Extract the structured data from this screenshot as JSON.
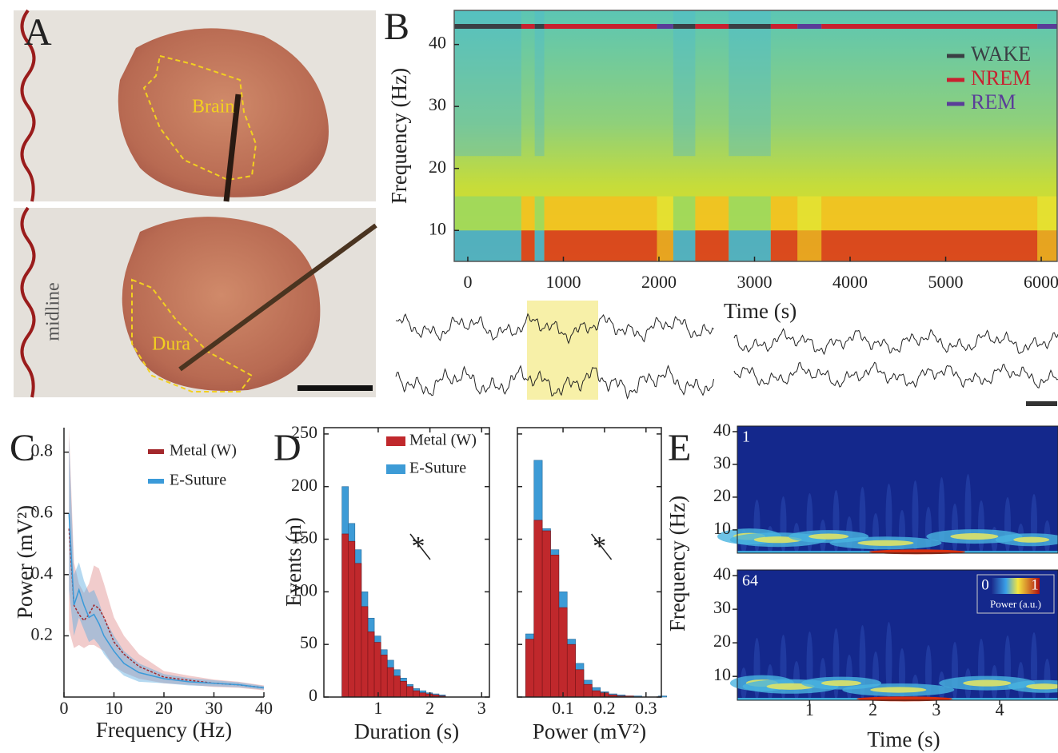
{
  "panel_labels": [
    "A",
    "B",
    "C",
    "D",
    "E"
  ],
  "photo": {
    "top_label": "Brain",
    "bottom_label": "Dura",
    "side_label": "midline"
  },
  "chart_data": [
    {
      "type": "spectrogram",
      "ylabel": "Frequency (Hz)",
      "xlabel": "Time (s)",
      "xlim": [
        -142,
        6167
      ],
      "ylim": [
        5,
        45.5
      ],
      "xticks": [
        0,
        1000,
        2000,
        3000,
        4000,
        5000,
        6000
      ],
      "yticks": [
        10,
        20,
        30,
        40
      ],
      "legend": "upper right",
      "series": [
        {
          "name": "WAKE",
          "color": "#3a3f44"
        },
        {
          "name": "NREM",
          "color": "#c8202f"
        },
        {
          "name": "REM",
          "color": "#5a3d98"
        }
      ],
      "hypnogram": {
        "stage": [
          0,
          1,
          0,
          1,
          2,
          0,
          1,
          0,
          1,
          2,
          1,
          2
        ],
        "start": [
          -142,
          560,
          700,
          800,
          1980,
          2150,
          2380,
          2730,
          3170,
          3450,
          3700,
          5960
        ],
        "end": [
          560,
          700,
          800,
          1980,
          2150,
          2380,
          2730,
          3170,
          3450,
          3700,
          5960,
          6167
        ]
      }
    },
    {
      "type": "line",
      "xlabel": "Frequency (Hz)",
      "ylabel": "Power (mV²)",
      "xlim": [
        0,
        40
      ],
      "ylim": [
        0,
        0.88
      ],
      "xticks": [
        0,
        10,
        20,
        30,
        40
      ],
      "yticks": [
        0.2,
        0.4,
        0.6,
        0.8
      ],
      "legend": "upper right",
      "x": [
        1,
        2,
        3,
        4,
        5,
        6,
        7,
        8,
        10,
        12,
        15,
        20,
        25,
        30,
        35,
        40
      ],
      "series": [
        {
          "name": "Metal (W)",
          "color": "#a3282c",
          "values": [
            0.55,
            0.3,
            0.27,
            0.25,
            0.27,
            0.3,
            0.29,
            0.26,
            0.18,
            0.14,
            0.1,
            0.065,
            0.055,
            0.045,
            0.04,
            0.03
          ],
          "errors": [
            0.33,
            0.14,
            0.1,
            0.09,
            0.1,
            0.13,
            0.13,
            0.11,
            0.08,
            0.06,
            0.04,
            0.02,
            0.015,
            0.012,
            0.01,
            0.008
          ]
        },
        {
          "name": "E-Suture",
          "color": "#3a9ad9",
          "values": [
            0.6,
            0.3,
            0.35,
            0.3,
            0.26,
            0.27,
            0.24,
            0.2,
            0.15,
            0.11,
            0.08,
            0.06,
            0.05,
            0.045,
            0.04,
            0.03
          ],
          "errors": [
            0.25,
            0.1,
            0.09,
            0.08,
            0.08,
            0.08,
            0.07,
            0.06,
            0.05,
            0.04,
            0.03,
            0.015,
            0.012,
            0.01,
            0.008,
            0.006
          ]
        }
      ]
    },
    {
      "type": "histogram",
      "xlabel": "Duration (s)",
      "ylabel": "Events (n)",
      "xlim": [
        -0.05,
        3.15
      ],
      "ylim": [
        0,
        256
      ],
      "xticks": [
        1,
        2,
        3
      ],
      "yticks": [
        0,
        50,
        100,
        150,
        200,
        250
      ],
      "annotation": "*",
      "legend": "upper right",
      "bins": [
        0.3,
        0.425,
        0.55,
        0.675,
        0.8,
        0.925,
        1.05,
        1.175,
        1.3,
        1.425,
        1.55,
        1.675,
        1.8,
        1.925,
        2.05,
        2.175,
        2.3
      ],
      "series": [
        {
          "name": "Metal (W)",
          "color": "#c0282c",
          "values": [
            155,
            148,
            127,
            86,
            62,
            52,
            40,
            28,
            20,
            15,
            10,
            6,
            4,
            3,
            2,
            1
          ]
        },
        {
          "name": "E-Suture",
          "color": "#3d9bd6",
          "values": [
            200,
            165,
            140,
            100,
            75,
            58,
            45,
            35,
            26,
            18,
            12,
            8,
            6,
            4,
            3,
            2
          ]
        }
      ]
    },
    {
      "type": "histogram",
      "xlabel": "Power (mV²)",
      "xlim": [
        -0.01,
        0.337
      ],
      "ylim": [
        0,
        256
      ],
      "xticks": [
        0.1,
        0.2,
        0.3
      ],
      "yticks": [
        0,
        50,
        100,
        150,
        200,
        250
      ],
      "annotation": "*",
      "bins": [
        0.01,
        0.03,
        0.05,
        0.07,
        0.09,
        0.11,
        0.13,
        0.15,
        0.17,
        0.19,
        0.21,
        0.23,
        0.25,
        0.27,
        0.29,
        0.31,
        0.33,
        0.35
      ],
      "series": [
        {
          "color": "#c0282c",
          "values": [
            55,
            168,
            158,
            135,
            85,
            50,
            26,
            12,
            6,
            4,
            2,
            1,
            1,
            0,
            0,
            0,
            0
          ]
        },
        {
          "color": "#3d9bd6",
          "values": [
            60,
            225,
            160,
            140,
            100,
            55,
            32,
            16,
            9,
            5,
            3,
            2,
            1,
            1,
            0,
            0,
            1
          ]
        }
      ]
    },
    {
      "type": "heatmap",
      "xlabel": "Time (s)",
      "ylabel": "Frequency (Hz)",
      "xlim": [
        -0.14,
        4.92
      ],
      "ylim": [
        2.9,
        41.7
      ],
      "xticks": [
        1,
        2,
        3,
        4
      ],
      "yticks": [
        10,
        20,
        30,
        40
      ],
      "panels": [
        "1",
        "64"
      ],
      "colorbar": {
        "lim": [
          0,
          1
        ],
        "ticks": [
          0,
          1
        ],
        "label": "Power (a.u.)"
      }
    }
  ]
}
